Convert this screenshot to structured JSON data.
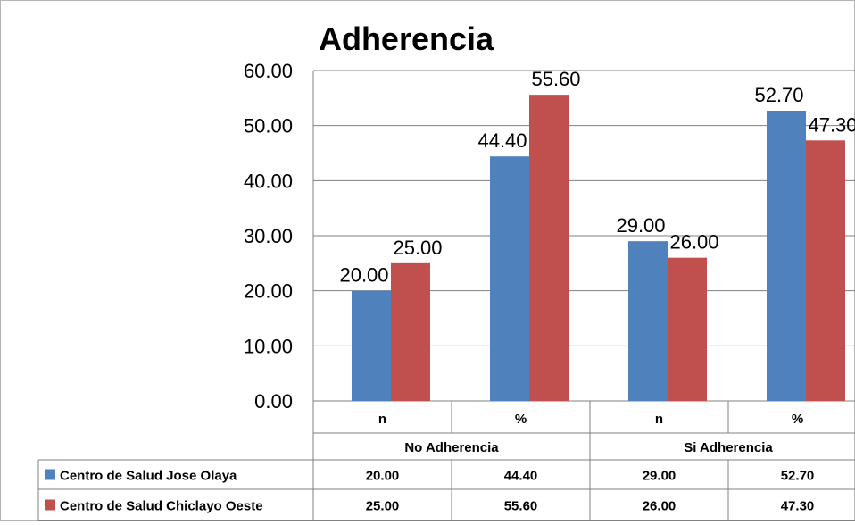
{
  "chart_data": {
    "type": "bar",
    "title": "Adherencia",
    "xlabel": "",
    "ylabel": "",
    "ylim": [
      0,
      60
    ],
    "yticks": [
      "0.00",
      "10.00",
      "20.00",
      "30.00",
      "40.00",
      "50.00",
      "60.00"
    ],
    "grid": true,
    "legend": "table-below",
    "groups": [
      "No Adherencia",
      "Si Adherencia"
    ],
    "categories": [
      "n",
      "%",
      "n",
      "%"
    ],
    "series": [
      {
        "name": "Centro de Salud Jose Olaya",
        "color": "#4f81bd",
        "values": [
          20.0,
          44.4,
          29.0,
          52.7
        ],
        "labels": [
          "20.00",
          "44.40",
          "29.00",
          "52.70"
        ]
      },
      {
        "name": "Centro de Salud Chiclayo Oeste",
        "color": "#c0504d",
        "values": [
          25.0,
          55.6,
          26.0,
          47.3
        ],
        "labels": [
          "25.00",
          "55.60",
          "26.00",
          "47.30"
        ]
      }
    ]
  }
}
